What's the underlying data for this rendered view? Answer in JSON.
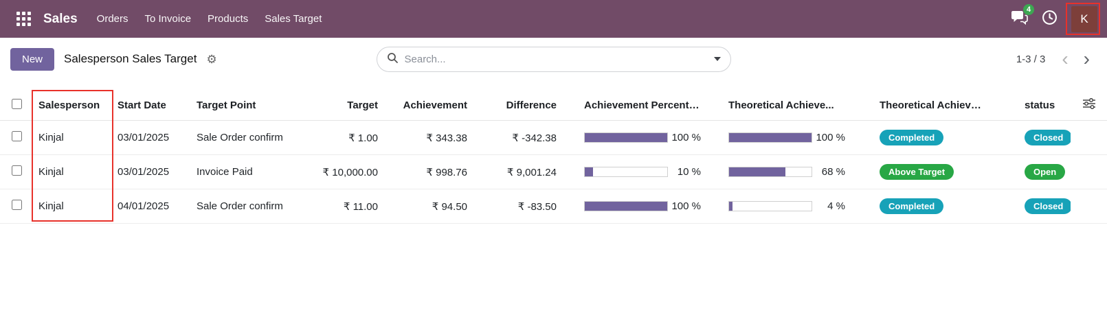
{
  "topbar": {
    "app_name": "Sales",
    "menu_items": [
      {
        "label": "Orders"
      },
      {
        "label": "To Invoice"
      },
      {
        "label": "Products"
      },
      {
        "label": "Sales Target"
      }
    ],
    "messages_badge": "4",
    "avatar_letter": "K"
  },
  "control_panel": {
    "new_button_label": "New",
    "breadcrumb_title": "Salesperson Sales Target",
    "search_placeholder": "Search...",
    "pager_text": "1-3 / 3"
  },
  "icons": {
    "gear": "⚙",
    "pager_prev": "‹",
    "pager_next": "›"
  },
  "table": {
    "headers": [
      "Salesperson",
      "Start Date",
      "Target Point",
      "Target",
      "Achievement",
      "Difference",
      "Achievement Percenta...",
      "Theoretical Achieve...",
      "Theoretical Achievem...",
      "status"
    ],
    "rows": [
      {
        "salesperson": "Kinjal",
        "start_date": "03/01/2025",
        "target_point": "Sale Order confirm",
        "target": "₹ 1.00",
        "achievement": "₹ 343.38",
        "difference": "₹ -342.38",
        "achievement_pct": 100,
        "achievement_pct_label": "100 %",
        "theoretical_pct": 100,
        "theoretical_pct_label": "100 %",
        "theoretical_status": "Completed",
        "theoretical_status_color": "teal",
        "status": "Closed",
        "status_color": "teal"
      },
      {
        "salesperson": "Kinjal",
        "start_date": "03/01/2025",
        "target_point": "Invoice Paid",
        "target": "₹ 10,000.00",
        "achievement": "₹ 998.76",
        "difference": "₹ 9,001.24",
        "achievement_pct": 10,
        "achievement_pct_label": "10 %",
        "theoretical_pct": 68,
        "theoretical_pct_label": "68 %",
        "theoretical_status": "Above Target",
        "theoretical_status_color": "green",
        "status": "Open",
        "status_color": "green"
      },
      {
        "salesperson": "Kinjal",
        "start_date": "04/01/2025",
        "target_point": "Sale Order confirm",
        "target": "₹ 11.00",
        "achievement": "₹ 94.50",
        "difference": "₹ -83.50",
        "achievement_pct": 100,
        "achievement_pct_label": "100 %",
        "theoretical_pct": 4,
        "theoretical_pct_label": "4 %",
        "theoretical_status": "Completed",
        "theoretical_status_color": "teal",
        "status": "Closed",
        "status_color": "teal"
      }
    ]
  },
  "colors": {
    "topbar_bg": "#714B67",
    "primary": "#71639e",
    "progress_fill": "#71639e",
    "badge_teal": "#17a2b8",
    "badge_green": "#28a745",
    "annotation_red": "#e8312a"
  }
}
